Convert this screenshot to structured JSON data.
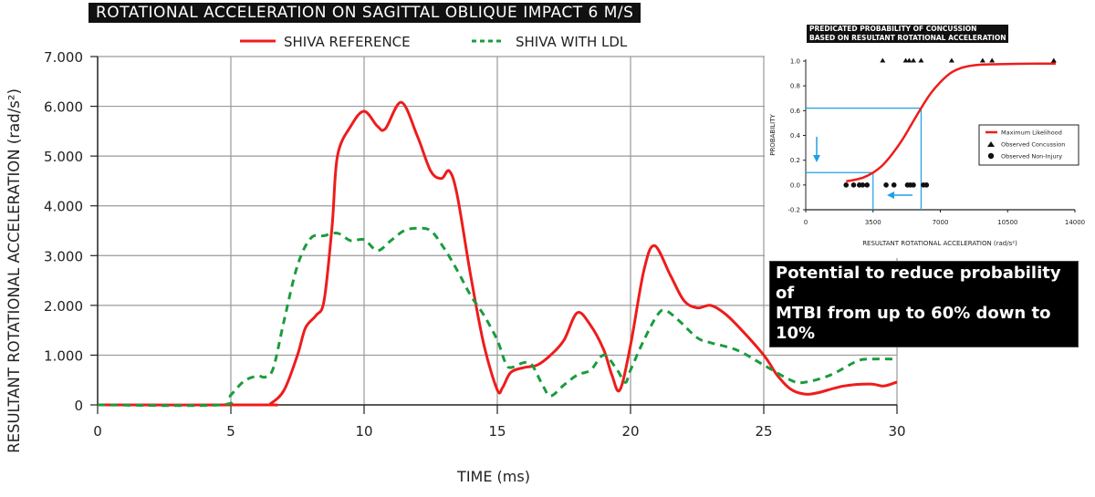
{
  "title": "ROTATIONAL ACCELERATION ON SAGITTAL OBLIQUE IMPACT 6 M/S",
  "callout": {
    "line1": "Potential to reduce probability of",
    "line2": "MTBI from up to 60% down to 10%"
  },
  "colors": {
    "reference": "#ee1c1c",
    "ldl": "#1a9c3e",
    "guide": "#1ea0e6",
    "grid": "#9a9a9a"
  },
  "chart_data": [
    {
      "type": "line",
      "title": "ROTATIONAL ACCELERATION ON SAGITTAL OBLIQUE IMPACT 6 M/S",
      "xlabel": "TIME (ms)",
      "ylabel": "RESULTANT ROTATIONAL ACCELERATION (rad/s²)",
      "xlim": [
        0,
        30
      ],
      "ylim": [
        0,
        7000
      ],
      "xticks": [
        "0",
        "5",
        "10",
        "15",
        "20",
        "25",
        "30"
      ],
      "xtick_values": [
        0,
        5,
        10,
        15,
        20,
        25,
        30
      ],
      "yticks": [
        "0",
        "1.000",
        "2.000",
        "3.000",
        "4.000",
        "5.000",
        "6.000",
        "7.000"
      ],
      "ytick_values": [
        0,
        1000,
        2000,
        3000,
        4000,
        5000,
        6000,
        7000
      ],
      "grid": true,
      "legend_position": "top-center",
      "series": [
        {
          "name": "SHIVA REFERENCE",
          "style": "solid",
          "x": [
            0,
            6.2,
            6.5,
            7.0,
            7.5,
            7.8,
            8.2,
            8.5,
            8.8,
            9.0,
            9.5,
            10.0,
            10.5,
            10.8,
            11.4,
            12.0,
            12.5,
            12.9,
            13.2,
            13.5,
            14.0,
            14.5,
            15.0,
            15.2,
            15.5,
            16.0,
            16.5,
            17.0,
            17.5,
            18.0,
            18.5,
            19.0,
            19.3,
            19.6,
            20.0,
            20.5,
            20.9,
            21.5,
            22.0,
            22.5,
            23.0,
            23.5,
            24.0,
            25.0,
            25.5,
            26.0,
            26.5,
            27.0,
            28.0,
            29.0,
            29.5,
            30.0
          ],
          "values": [
            0,
            0,
            30,
            300,
            1000,
            1550,
            1800,
            2100,
            3600,
            5000,
            5600,
            5900,
            5600,
            5550,
            6080,
            5400,
            4700,
            4550,
            4700,
            4200,
            2600,
            1200,
            300,
            350,
            650,
            750,
            800,
            1000,
            1300,
            1850,
            1600,
            1100,
            600,
            300,
            1200,
            2700,
            3200,
            2600,
            2100,
            1950,
            2000,
            1850,
            1600,
            1000,
            600,
            320,
            220,
            240,
            380,
            420,
            380,
            460
          ]
        },
        {
          "name": "SHIVA WITH LDL",
          "style": "dashed",
          "x": [
            0,
            4.6,
            5.0,
            5.5,
            6.0,
            6.3,
            6.6,
            7.0,
            7.5,
            8.0,
            8.5,
            9.0,
            9.5,
            10.0,
            10.5,
            11.0,
            11.5,
            12.0,
            12.5,
            13.0,
            13.5,
            14.0,
            14.5,
            15.0,
            15.3,
            15.5,
            16.0,
            16.3,
            16.7,
            17.0,
            17.5,
            18.0,
            18.5,
            19.0,
            19.5,
            19.8,
            20.0,
            20.5,
            21.0,
            21.3,
            21.8,
            22.5,
            23.0,
            24.0,
            25.0,
            26.0,
            26.5,
            27.5,
            28.5,
            29.0,
            30.0
          ],
          "values": [
            0,
            0,
            200,
            480,
            580,
            560,
            750,
            1700,
            2800,
            3350,
            3400,
            3450,
            3300,
            3320,
            3100,
            3300,
            3500,
            3550,
            3500,
            3150,
            2700,
            2200,
            1800,
            1300,
            850,
            750,
            850,
            800,
            400,
            180,
            400,
            600,
            700,
            1000,
            700,
            450,
            700,
            1300,
            1800,
            1900,
            1700,
            1350,
            1250,
            1100,
            800,
            500,
            450,
            600,
            880,
            920,
            920
          ]
        }
      ]
    },
    {
      "type": "scatter",
      "title": "PREDICATED PROBABILITY OF CONCUSSION BASED ON RESULTANT ROTATIONAL ACCELERATION",
      "title_lines": [
        "PREDICATED PROBABILITY OF CONCUSSION",
        "BASED ON RESULTANT ROTATIONAL ACCELERATION"
      ],
      "xlabel": "RESULTANT ROTATIONAL ACCELERATION (rad/s²)",
      "ylabel": "PROBABILITY",
      "xlim": [
        0,
        14000
      ],
      "ylim": [
        -0.2,
        1.0
      ],
      "xticks": [
        "0",
        "3500",
        "7000",
        "10500",
        "14000"
      ],
      "xtick_values": [
        0,
        3500,
        7000,
        10500,
        14000
      ],
      "yticks": [
        "-0.2",
        "0.0",
        "0.2",
        "0.4",
        "0.6",
        "0.8",
        "1.0"
      ],
      "ytick_values": [
        -0.2,
        0.0,
        0.2,
        0.4,
        0.6,
        0.8,
        1.0
      ],
      "grid": false,
      "legend_position": "right",
      "legend": [
        "Maximum Likelihood",
        "Observed Concussion",
        "Observed Non-Injury"
      ],
      "curve": {
        "name": "Maximum Likelihood",
        "x": [
          2100,
          2500,
          3000,
          3500,
          4000,
          4500,
          5000,
          5500,
          6000,
          6500,
          7000,
          7500,
          8000,
          8500,
          9000,
          10000,
          11000,
          12000,
          13000
        ],
        "values": [
          0.03,
          0.04,
          0.06,
          0.1,
          0.16,
          0.25,
          0.36,
          0.49,
          0.62,
          0.74,
          0.83,
          0.9,
          0.94,
          0.96,
          0.97,
          0.975,
          0.978,
          0.98,
          0.98
        ]
      },
      "concussion": {
        "name": "Observed Concussion",
        "x": [
          4000,
          5200,
          5380,
          5600,
          6000,
          7590,
          9200,
          9690,
          12900
        ],
        "values": [
          1,
          1,
          1,
          1,
          1,
          1,
          1,
          1,
          1
        ]
      },
      "non_injury": {
        "name": "Observed Non-Injury",
        "x": [
          2100,
          2490,
          2790,
          2960,
          3190,
          4180,
          4590,
          5290,
          5440,
          5600,
          6120,
          6280
        ],
        "values": [
          0,
          0,
          0,
          0,
          0,
          0,
          0,
          0,
          0,
          0,
          0,
          0
        ]
      },
      "guides": [
        {
          "x": 3500,
          "probability": 0.1
        },
        {
          "x": 6000,
          "probability": 0.62
        }
      ]
    }
  ]
}
